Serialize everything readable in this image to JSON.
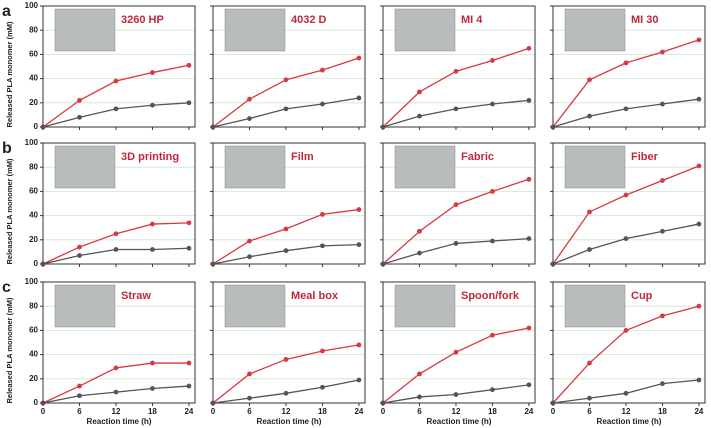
{
  "chart_data": [
    {
      "type": "line",
      "panel_label": "a",
      "title": "3260 HP",
      "ylabel": "Released PLA monomer (mM)",
      "show_yticklabels": true,
      "show_xticklabels": false,
      "x": [
        0,
        6,
        12,
        18,
        24
      ],
      "xlim": [
        0,
        25
      ],
      "xticks": [
        0,
        6,
        12,
        18,
        24
      ],
      "ylim": [
        0,
        100
      ],
      "yticks": [
        0,
        20,
        40,
        60,
        80,
        100
      ],
      "grid": true,
      "series": [
        {
          "color": "#d9383f",
          "values": [
            0,
            22,
            38,
            45,
            51
          ]
        },
        {
          "color": "#555555",
          "values": [
            0,
            8,
            15,
            18,
            20
          ]
        }
      ]
    },
    {
      "type": "line",
      "title": "4032 D",
      "show_yticklabels": false,
      "show_xticklabels": false,
      "x": [
        0,
        6,
        12,
        18,
        24
      ],
      "xlim": [
        0,
        25
      ],
      "xticks": [
        0,
        6,
        12,
        18,
        24
      ],
      "ylim": [
        0,
        100
      ],
      "yticks": [
        0,
        20,
        40,
        60,
        80,
        100
      ],
      "grid": true,
      "series": [
        {
          "color": "#d9383f",
          "values": [
            0,
            23,
            39,
            47,
            57
          ]
        },
        {
          "color": "#555555",
          "values": [
            0,
            7,
            15,
            19,
            24
          ]
        }
      ]
    },
    {
      "type": "line",
      "title": "MI 4",
      "show_yticklabels": false,
      "show_xticklabels": false,
      "x": [
        0,
        6,
        12,
        18,
        24
      ],
      "xlim": [
        0,
        25
      ],
      "xticks": [
        0,
        6,
        12,
        18,
        24
      ],
      "ylim": [
        0,
        100
      ],
      "yticks": [
        0,
        20,
        40,
        60,
        80,
        100
      ],
      "grid": true,
      "series": [
        {
          "color": "#d9383f",
          "values": [
            0,
            29,
            46,
            55,
            65
          ]
        },
        {
          "color": "#555555",
          "values": [
            0,
            9,
            15,
            19,
            22
          ]
        }
      ]
    },
    {
      "type": "line",
      "title": "MI 30",
      "show_yticklabels": false,
      "show_xticklabels": false,
      "x": [
        0,
        6,
        12,
        18,
        24
      ],
      "xlim": [
        0,
        25
      ],
      "xticks": [
        0,
        6,
        12,
        18,
        24
      ],
      "ylim": [
        0,
        100
      ],
      "yticks": [
        0,
        20,
        40,
        60,
        80,
        100
      ],
      "grid": true,
      "series": [
        {
          "color": "#d9383f",
          "values": [
            0,
            39,
            53,
            62,
            72
          ]
        },
        {
          "color": "#555555",
          "values": [
            0,
            9,
            15,
            19,
            23
          ]
        }
      ]
    },
    {
      "type": "line",
      "panel_label": "b",
      "title": "3D printing",
      "ylabel": "Released PLA monomer (mM)",
      "show_yticklabels": true,
      "show_xticklabels": false,
      "x": [
        0,
        6,
        12,
        18,
        24
      ],
      "xlim": [
        0,
        25
      ],
      "xticks": [
        0,
        6,
        12,
        18,
        24
      ],
      "ylim": [
        0,
        100
      ],
      "yticks": [
        0,
        20,
        40,
        60,
        80,
        100
      ],
      "grid": true,
      "series": [
        {
          "color": "#d9383f",
          "values": [
            0,
            14,
            25,
            33,
            34
          ]
        },
        {
          "color": "#555555",
          "values": [
            0,
            7,
            12,
            12,
            13
          ]
        }
      ]
    },
    {
      "type": "line",
      "title": "Film",
      "show_yticklabels": false,
      "show_xticklabels": false,
      "x": [
        0,
        6,
        12,
        18,
        24
      ],
      "xlim": [
        0,
        25
      ],
      "xticks": [
        0,
        6,
        12,
        18,
        24
      ],
      "ylim": [
        0,
        100
      ],
      "yticks": [
        0,
        20,
        40,
        60,
        80,
        100
      ],
      "grid": true,
      "series": [
        {
          "color": "#d9383f",
          "values": [
            0,
            19,
            29,
            41,
            45
          ]
        },
        {
          "color": "#555555",
          "values": [
            0,
            6,
            11,
            15,
            16
          ]
        }
      ]
    },
    {
      "type": "line",
      "title": "Fabric",
      "show_yticklabels": false,
      "show_xticklabels": false,
      "x": [
        0,
        6,
        12,
        18,
        24
      ],
      "xlim": [
        0,
        25
      ],
      "xticks": [
        0,
        6,
        12,
        18,
        24
      ],
      "ylim": [
        0,
        100
      ],
      "yticks": [
        0,
        20,
        40,
        60,
        80,
        100
      ],
      "grid": true,
      "series": [
        {
          "color": "#d9383f",
          "values": [
            0,
            27,
            49,
            60,
            70
          ]
        },
        {
          "color": "#555555",
          "values": [
            0,
            9,
            17,
            19,
            21
          ]
        }
      ]
    },
    {
      "type": "line",
      "title": "Fiber",
      "show_yticklabels": false,
      "show_xticklabels": false,
      "x": [
        0,
        6,
        12,
        18,
        24
      ],
      "xlim": [
        0,
        25
      ],
      "xticks": [
        0,
        6,
        12,
        18,
        24
      ],
      "ylim": [
        0,
        100
      ],
      "yticks": [
        0,
        20,
        40,
        60,
        80,
        100
      ],
      "grid": true,
      "series": [
        {
          "color": "#d9383f",
          "values": [
            0,
            43,
            57,
            69,
            81
          ]
        },
        {
          "color": "#555555",
          "values": [
            0,
            12,
            21,
            27,
            33
          ]
        }
      ]
    },
    {
      "type": "line",
      "panel_label": "c",
      "title": "Straw",
      "ylabel": "Released PLA monomer (mM)",
      "xlabel": "Reaction time (h)",
      "show_yticklabels": true,
      "show_xticklabels": true,
      "x": [
        0,
        6,
        12,
        18,
        24
      ],
      "xlim": [
        0,
        25
      ],
      "xticks": [
        0,
        6,
        12,
        18,
        24
      ],
      "ylim": [
        0,
        100
      ],
      "yticks": [
        0,
        20,
        40,
        60,
        80,
        100
      ],
      "grid": true,
      "series": [
        {
          "color": "#d9383f",
          "values": [
            0,
            14,
            29,
            33,
            33
          ]
        },
        {
          "color": "#555555",
          "values": [
            0,
            6,
            9,
            12,
            14
          ]
        }
      ]
    },
    {
      "type": "line",
      "title": "Meal box",
      "xlabel": "Reaction time (h)",
      "show_yticklabels": false,
      "show_xticklabels": true,
      "x": [
        0,
        6,
        12,
        18,
        24
      ],
      "xlim": [
        0,
        25
      ],
      "xticks": [
        0,
        6,
        12,
        18,
        24
      ],
      "ylim": [
        0,
        100
      ],
      "yticks": [
        0,
        20,
        40,
        60,
        80,
        100
      ],
      "grid": true,
      "series": [
        {
          "color": "#d9383f",
          "values": [
            0,
            24,
            36,
            43,
            48
          ]
        },
        {
          "color": "#555555",
          "values": [
            0,
            4,
            8,
            13,
            19
          ]
        }
      ]
    },
    {
      "type": "line",
      "title": "Spoon/fork",
      "xlabel": "Reaction time (h)",
      "show_yticklabels": false,
      "show_xticklabels": true,
      "x": [
        0,
        6,
        12,
        18,
        24
      ],
      "xlim": [
        0,
        25
      ],
      "xticks": [
        0,
        6,
        12,
        18,
        24
      ],
      "ylim": [
        0,
        100
      ],
      "yticks": [
        0,
        20,
        40,
        60,
        80,
        100
      ],
      "grid": true,
      "series": [
        {
          "color": "#d9383f",
          "values": [
            0,
            24,
            42,
            56,
            62
          ]
        },
        {
          "color": "#555555",
          "values": [
            0,
            5,
            7,
            11,
            15
          ]
        }
      ]
    },
    {
      "type": "line",
      "title": "Cup",
      "xlabel": "Reaction time (h)",
      "show_yticklabels": false,
      "show_xticklabels": true,
      "x": [
        0,
        6,
        12,
        18,
        24
      ],
      "xlim": [
        0,
        25
      ],
      "xticks": [
        0,
        6,
        12,
        18,
        24
      ],
      "ylim": [
        0,
        100
      ],
      "yticks": [
        0,
        20,
        40,
        60,
        80,
        100
      ],
      "grid": true,
      "series": [
        {
          "color": "#d9383f",
          "values": [
            0,
            33,
            60,
            72,
            80
          ]
        },
        {
          "color": "#555555",
          "values": [
            0,
            4,
            8,
            16,
            19
          ]
        }
      ]
    }
  ]
}
